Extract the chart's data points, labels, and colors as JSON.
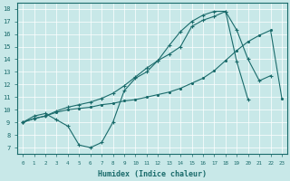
{
  "xlabel": "Humidex (Indice chaleur)",
  "background_color": "#c8e8e8",
  "line_color": "#1a6b6b",
  "xlim": [
    -0.5,
    23.5
  ],
  "ylim": [
    6.5,
    18.5
  ],
  "xticks": [
    0,
    1,
    2,
    3,
    4,
    5,
    6,
    7,
    8,
    9,
    10,
    11,
    12,
    13,
    14,
    15,
    16,
    17,
    18,
    19,
    20,
    21,
    22,
    23
  ],
  "yticks": [
    7,
    8,
    9,
    10,
    11,
    12,
    13,
    14,
    15,
    16,
    17,
    18
  ],
  "line1_x": [
    0,
    1,
    2,
    3,
    4,
    5,
    6,
    7,
    8,
    9,
    10,
    11,
    12,
    13,
    14,
    15,
    16,
    17,
    18,
    19,
    20
  ],
  "line1_y": [
    9.0,
    9.5,
    9.7,
    9.2,
    8.7,
    7.2,
    7.0,
    7.4,
    9.0,
    11.5,
    12.5,
    13.0,
    13.9,
    15.1,
    16.2,
    17.0,
    17.5,
    17.8,
    17.8,
    13.8,
    10.8
  ],
  "line2_x": [
    0,
    1,
    2,
    3,
    4,
    5,
    6,
    7,
    8,
    9,
    10,
    11,
    12,
    13,
    14,
    15,
    16,
    17,
    18,
    19,
    20,
    21,
    22,
    23
  ],
  "line2_y": [
    9.0,
    9.3,
    9.5,
    9.8,
    10.0,
    10.1,
    10.2,
    10.4,
    10.5,
    10.7,
    10.8,
    11.0,
    11.2,
    11.4,
    11.7,
    12.1,
    12.5,
    13.1,
    13.9,
    14.7,
    15.4,
    15.9,
    16.3,
    10.9
  ],
  "line3_x": [
    0,
    1,
    2,
    3,
    4,
    5,
    6,
    7,
    8,
    9,
    10,
    11,
    12,
    13,
    14,
    15,
    16,
    17,
    18,
    19,
    20,
    21,
    22
  ],
  "line3_y": [
    9.0,
    9.3,
    9.5,
    9.9,
    10.2,
    10.4,
    10.6,
    10.9,
    11.3,
    11.9,
    12.6,
    13.3,
    13.9,
    14.4,
    15.0,
    16.6,
    17.1,
    17.4,
    17.8,
    16.3,
    14.0,
    12.3,
    12.7
  ]
}
